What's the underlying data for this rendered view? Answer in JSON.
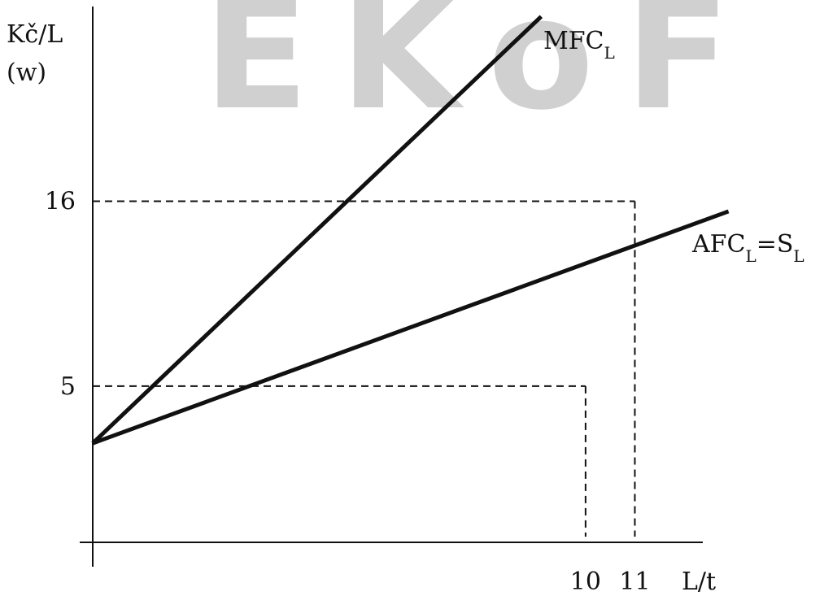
{
  "watermark": "EKoF",
  "chart_data": {
    "type": "line",
    "title": "",
    "ylabel_line1": "Kč/L",
    "ylabel_line2": "(w)",
    "xlabel": "L/t",
    "x_ticks": [
      {
        "value": 10,
        "label": "10"
      },
      {
        "value": 11,
        "label": "11"
      }
    ],
    "y_ticks": [
      {
        "value": 5,
        "label": "5"
      },
      {
        "value": 16,
        "label": "16"
      }
    ],
    "xlim": [
      0,
      13.6
    ],
    "ylim": [
      -4.3,
      27.4
    ],
    "series": [
      {
        "name": "MFC",
        "name_sub": "L",
        "label_suffix": "",
        "x": [
          0,
          9.1
        ],
        "y": [
          1.6,
          27
        ]
      },
      {
        "name": "AFC",
        "name_sub": "L",
        "label_suffix": "=S",
        "label_suffix_sub": "L",
        "x": [
          0,
          12.9
        ],
        "y": [
          1.6,
          15.4
        ]
      }
    ],
    "reference_lines": [
      {
        "x": 11,
        "y": 16
      },
      {
        "x": 10,
        "y": 5
      }
    ],
    "colors": {
      "lines": "#111111",
      "axes": "#111111"
    }
  }
}
